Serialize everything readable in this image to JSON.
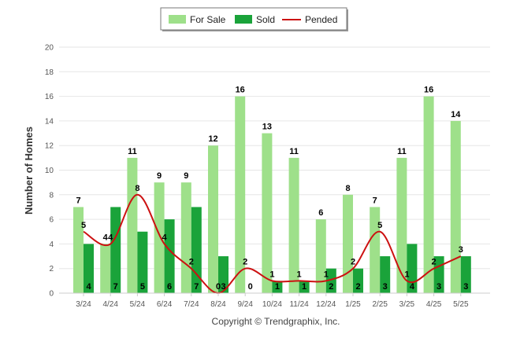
{
  "chart_data": {
    "type": "bar",
    "categories": [
      "3/24",
      "4/24",
      "5/24",
      "6/24",
      "7/24",
      "8/24",
      "9/24",
      "10/24",
      "11/24",
      "12/24",
      "1/25",
      "2/25",
      "3/25",
      "4/25",
      "5/25"
    ],
    "series": [
      {
        "name": "For Sale",
        "type": "bar",
        "color": "#9ee08a",
        "values": [
          7,
          4,
          11,
          9,
          9,
          12,
          16,
          13,
          11,
          6,
          8,
          7,
          11,
          16,
          14
        ]
      },
      {
        "name": "Sold",
        "type": "bar",
        "color": "#1aa33a",
        "values": [
          4,
          7,
          5,
          6,
          7,
          3,
          0,
          1,
          1,
          2,
          2,
          3,
          4,
          3,
          3
        ]
      },
      {
        "name": "Pended",
        "type": "line",
        "color": "#cc1111",
        "values": [
          5,
          4,
          8,
          4,
          2,
          0,
          2,
          1,
          1,
          1,
          2,
          5,
          1,
          2,
          3
        ]
      }
    ],
    "ylabel": "Number of Homes",
    "xlabel": "",
    "ylim": [
      0,
      20
    ],
    "yticks": [
      0,
      2,
      4,
      6,
      8,
      10,
      12,
      14,
      16,
      18,
      20
    ],
    "grid": true,
    "legend": "top-center"
  },
  "footer": {
    "copyright": "Copyright © Trendgraphix, Inc."
  }
}
